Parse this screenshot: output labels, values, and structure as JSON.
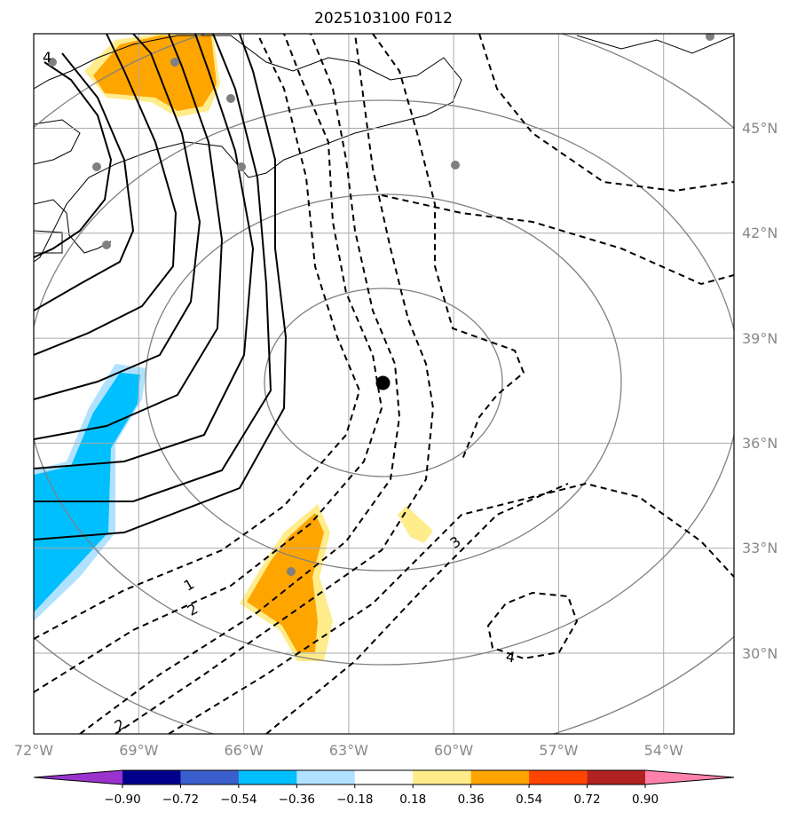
{
  "title": "2025103100 F012",
  "map": {
    "lon_ticks": [
      "72°W",
      "69°W",
      "66°W",
      "63°W",
      "60°W",
      "57°W",
      "54°W"
    ],
    "lat_ticks": [
      "45°N",
      "42°N",
      "39°N",
      "36°N",
      "33°N",
      "30°N"
    ],
    "contour_labels": [
      "1",
      "2",
      "2",
      "3",
      "4",
      "4"
    ],
    "gridlines": true,
    "storm_center_icon": "black-dot-icon",
    "station_icon": "gray-dot-icon"
  },
  "colorbar": {
    "ticks": [
      "−0.90",
      "−0.72",
      "−0.54",
      "−0.36",
      "−0.18",
      "0.18",
      "0.36",
      "0.54",
      "0.72",
      "0.90"
    ],
    "colors": [
      "#9a32cd",
      "#00008b",
      "#3a5fcd",
      "#00bfff",
      "#b0e2ff",
      "#ffffff",
      "#ffec8b",
      "#ffa500",
      "#ff4500",
      "#b22222",
      "#ff82ab"
    ],
    "extend": "both"
  }
}
